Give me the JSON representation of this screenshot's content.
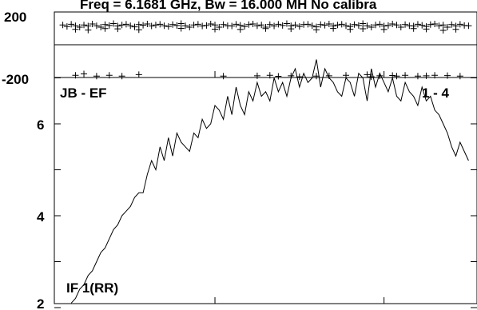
{
  "header": {
    "title": "Freq = 6.1681 GHz, Bw = 16.000 MH   No calibra"
  },
  "chart_data": [
    {
      "type": "scatter",
      "panel": "phase",
      "ylim": [
        -200,
        200
      ],
      "xlim": [
        0,
        1
      ],
      "ytick_labels": [
        "200",
        "-200"
      ],
      "ytick_values": [
        200,
        -200
      ],
      "grid": false,
      "marker": "+",
      "x": [
        0.02,
        0.03,
        0.04,
        0.05,
        0.06,
        0.07,
        0.08,
        0.09,
        0.1,
        0.11,
        0.12,
        0.13,
        0.14,
        0.15,
        0.16,
        0.17,
        0.18,
        0.19,
        0.2,
        0.21,
        0.22,
        0.23,
        0.24,
        0.25,
        0.26,
        0.27,
        0.28,
        0.29,
        0.3,
        0.31,
        0.32,
        0.33,
        0.34,
        0.35,
        0.36,
        0.37,
        0.38,
        0.39,
        0.4,
        0.41,
        0.42,
        0.43,
        0.44,
        0.45,
        0.46,
        0.47,
        0.48,
        0.49,
        0.5,
        0.51,
        0.52,
        0.53,
        0.54,
        0.55,
        0.56,
        0.57,
        0.58,
        0.59,
        0.6,
        0.61,
        0.62,
        0.63,
        0.64,
        0.65,
        0.66,
        0.67,
        0.68,
        0.69,
        0.7,
        0.71,
        0.72,
        0.73,
        0.74,
        0.75,
        0.76,
        0.77,
        0.78,
        0.79,
        0.8,
        0.81,
        0.82,
        0.83,
        0.84,
        0.85,
        0.86,
        0.87,
        0.88,
        0.89,
        0.9,
        0.91,
        0.92,
        0.93,
        0.94,
        0.95,
        0.96,
        0.97,
        0.98,
        0.05,
        0.08,
        0.12,
        0.15,
        0.2,
        0.3,
        0.38,
        0.44,
        0.5,
        0.56,
        0.62,
        0.66,
        0.7,
        0.73,
        0.78,
        0.85,
        0.88,
        0.92,
        0.95,
        0.05,
        0.07,
        0.1,
        0.13,
        0.16,
        0.2,
        0.4,
        0.48,
        0.51,
        0.53,
        0.56,
        0.58,
        0.62,
        0.65,
        0.69,
        0.74,
        0.75,
        0.77,
        0.8,
        0.81,
        0.83,
        0.86,
        0.88,
        0.9,
        0.93,
        0.96
      ],
      "y": [
        165,
        155,
        170,
        160,
        150,
        165,
        158,
        172,
        160,
        150,
        168,
        162,
        175,
        158,
        165,
        170,
        160,
        152,
        168,
        163,
        172,
        158,
        165,
        170,
        160,
        155,
        168,
        162,
        175,
        160,
        150,
        165,
        170,
        158,
        162,
        172,
        165,
        150,
        168,
        160,
        158,
        170,
        163,
        155,
        168,
        172,
        160,
        165,
        150,
        168,
        158,
        170,
        162,
        175,
        160,
        165,
        155,
        168,
        170,
        160,
        152,
        168,
        163,
        172,
        158,
        165,
        170,
        160,
        155,
        168,
        162,
        175,
        160,
        150,
        165,
        170,
        158,
        162,
        172,
        165,
        150,
        168,
        160,
        158,
        170,
        163,
        155,
        168,
        172,
        160,
        165,
        150,
        168,
        158,
        170,
        162,
        160,
        135,
        130,
        140,
        138,
        132,
        142,
        136,
        134,
        140,
        138,
        132,
        141,
        135,
        139,
        134,
        140,
        137,
        128,
        135,
        -185,
        -175,
        -190,
        -185,
        -190,
        -180,
        -190,
        -188,
        -185,
        -192,
        -188,
        -195,
        -190,
        -188,
        -185,
        -180,
        -195,
        -188,
        -186,
        -190,
        -185,
        -190,
        -188,
        -185,
        -187,
        -190
      ]
    },
    {
      "type": "line",
      "panel": "amplitude",
      "title": "JB - EF",
      "annotation_right": "1 - 4",
      "annotation_bottom": "IF 1(RR)",
      "ylim": [
        2,
        7.95
      ],
      "xlim": [
        0,
        1
      ],
      "ytick_labels": [
        "6",
        "4",
        "2"
      ],
      "ytick_values": [
        6,
        4,
        2
      ],
      "grid": false,
      "x": [
        0.04,
        0.05,
        0.06,
        0.07,
        0.08,
        0.09,
        0.1,
        0.11,
        0.12,
        0.13,
        0.14,
        0.15,
        0.16,
        0.17,
        0.18,
        0.19,
        0.2,
        0.21,
        0.22,
        0.23,
        0.24,
        0.25,
        0.26,
        0.27,
        0.28,
        0.29,
        0.3,
        0.31,
        0.32,
        0.33,
        0.34,
        0.35,
        0.36,
        0.37,
        0.38,
        0.39,
        0.4,
        0.41,
        0.42,
        0.43,
        0.44,
        0.45,
        0.46,
        0.47,
        0.48,
        0.49,
        0.5,
        0.51,
        0.52,
        0.53,
        0.54,
        0.55,
        0.56,
        0.57,
        0.58,
        0.59,
        0.6,
        0.61,
        0.62,
        0.63,
        0.64,
        0.65,
        0.66,
        0.67,
        0.68,
        0.69,
        0.7,
        0.71,
        0.72,
        0.73,
        0.74,
        0.75,
        0.76,
        0.77,
        0.78,
        0.79,
        0.8,
        0.81,
        0.82,
        0.83,
        0.84,
        0.85,
        0.86,
        0.87,
        0.88,
        0.89,
        0.9,
        0.91,
        0.92,
        0.93,
        0.94,
        0.95,
        0.96,
        0.97,
        0.98
      ],
      "y": [
        2.1,
        2.2,
        2.4,
        2.5,
        2.7,
        2.8,
        3.0,
        3.2,
        3.3,
        3.5,
        3.7,
        3.8,
        4.0,
        4.1,
        4.2,
        4.4,
        4.5,
        4.5,
        4.9,
        5.2,
        5.0,
        5.5,
        5.2,
        5.7,
        5.3,
        5.8,
        5.6,
        5.5,
        5.4,
        5.8,
        5.7,
        6.1,
        5.9,
        6.0,
        6.4,
        6.3,
        6.1,
        6.6,
        6.2,
        6.8,
        6.4,
        6.2,
        6.7,
        6.5,
        6.9,
        6.6,
        6.7,
        6.5,
        7.0,
        6.7,
        6.9,
        6.6,
        7.0,
        7.2,
        6.8,
        7.1,
        6.9,
        7.0,
        7.4,
        6.8,
        7.2,
        7.0,
        6.9,
        6.7,
        6.6,
        7.0,
        6.9,
        6.6,
        7.1,
        7.0,
        6.5,
        7.2,
        6.8,
        7.1,
        6.9,
        6.7,
        7.0,
        6.6,
        6.5,
        6.9,
        6.7,
        6.6,
        6.4,
        6.8,
        6.5,
        6.6,
        6.3,
        6.2,
        6.0,
        5.8,
        5.5,
        5.3,
        5.6,
        5.4,
        5.2
      ]
    }
  ],
  "colors": {
    "ink": "#000000",
    "background": "#ffffff"
  }
}
